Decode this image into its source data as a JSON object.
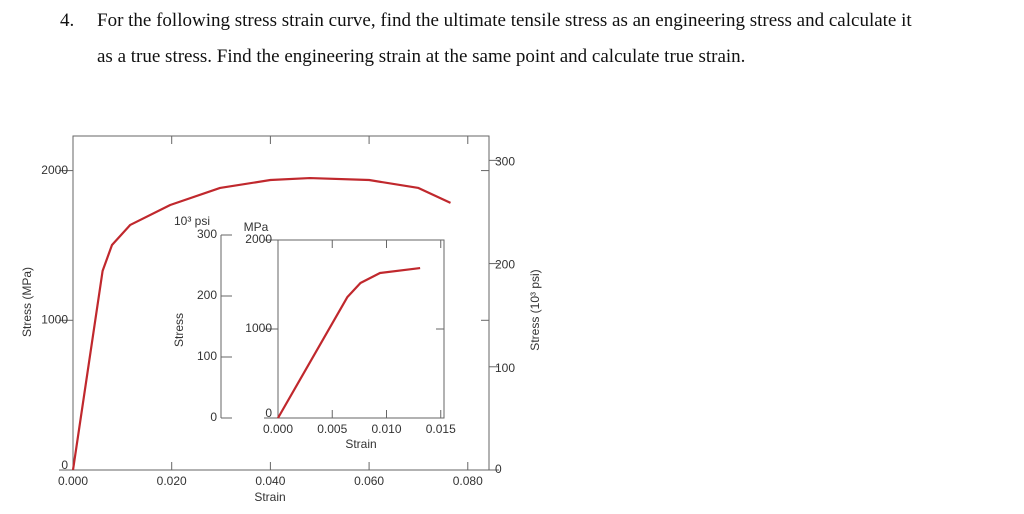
{
  "question": {
    "number": "4.",
    "lines": [
      "For the following stress strain curve, find the ultimate tensile stress as an engineering stress and calculate it",
      "as a true stress. Find the engineering strain at the same point and calculate true strain."
    ]
  },
  "chart_data": [
    {
      "type": "line",
      "xlabel": "Strain",
      "ylabel": "Stress (MPa)",
      "y2label": "Stress (10³ psi)",
      "x": [
        0,
        0.006,
        0.0079,
        0.0116,
        0.0197,
        0.0298,
        0.04,
        0.048,
        0.06,
        0.07,
        0.0765
      ],
      "series": [
        {
          "color": "#c0282d",
          "values": [
            0,
            1330,
            1503,
            1637,
            1770,
            1884,
            1937,
            1950,
            1937,
            1884,
            1784
          ]
        }
      ],
      "xlim": [
        0,
        0.0843
      ],
      "ylim": [
        0,
        2231
      ],
      "y2lim": [
        0,
        323.6
      ],
      "xticks": [
        {
          "value": 0,
          "label": "0.000"
        },
        {
          "value": 0.02,
          "label": "0.020"
        },
        {
          "value": 0.04,
          "label": "0.040"
        },
        {
          "value": 0.06,
          "label": "0.060"
        },
        {
          "value": 0.08,
          "label": "0.080"
        }
      ],
      "yticks": [
        0,
        1000,
        2000
      ],
      "y2ticks": [
        0,
        100,
        200,
        300
      ]
    },
    {
      "type": "line",
      "xlabel": "Strain",
      "ylabel": "Stress",
      "yunit": "MPa",
      "y2label": "10³ psi",
      "x": [
        0,
        0.0064,
        0.0076,
        0.0094,
        0.0131
      ],
      "series": [
        {
          "color": "#c0282d",
          "values": [
            0,
            1360,
            1517,
            1629,
            1685
          ]
        }
      ],
      "xlim": [
        0,
        0.0153
      ],
      "ylim": [
        0,
        2000
      ],
      "y2lim": [
        0,
        300
      ],
      "xticks": [
        {
          "value": 0,
          "label": "0.000"
        },
        {
          "value": 0.005,
          "label": "0.005"
        },
        {
          "value": 0.01,
          "label": "0.010"
        },
        {
          "value": 0.015,
          "label": "0.015"
        }
      ],
      "yticks": [
        0,
        1000,
        2000
      ],
      "y2ticks": [
        0,
        100,
        200,
        300
      ]
    }
  ]
}
